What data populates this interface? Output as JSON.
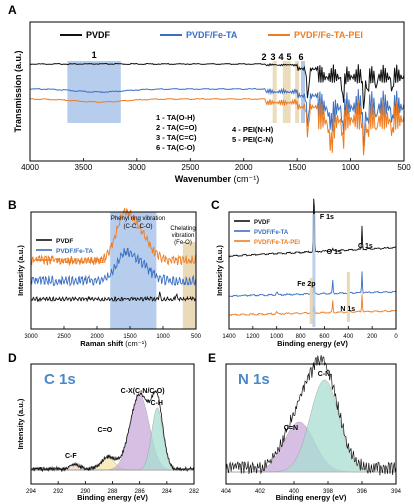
{
  "colors": {
    "pvdf": "#111111",
    "fe_ta": "#3b6fc4",
    "fe_ta_pei": "#ee7d22",
    "band_blue": "#a9c4ea",
    "band_tan": "#e9d8b4",
    "purple": "#c9a8d9",
    "teal": "#a8ded2"
  },
  "chart_data": [
    {
      "panel": "A",
      "type": "line",
      "xlabel": "Wavenumber",
      "xlabel_unit": "(cm⁻¹)",
      "ylabel": "Transmission (a.u.)",
      "xlim": [
        4000,
        500
      ],
      "xticks": [
        4000,
        3500,
        3000,
        2500,
        2000,
        1500,
        1000,
        500
      ],
      "legend": [
        "PVDF",
        "PVDF/Fe-TA",
        "PVDF/Fe-TA-PEI"
      ],
      "band_labels": [
        "1",
        "2",
        "3",
        "4",
        "5",
        "6"
      ],
      "annotations": [
        "1 - TA(O-H)",
        "2 - TA(C=O)",
        "3 - TA(C=C)",
        "6 - TA(C-O)",
        "4 - PEI(N-H)",
        "5 - PEI(C-N)"
      ],
      "bands": [
        {
          "label": "1",
          "from": 3650,
          "to": 3150
        },
        {
          "label": "2",
          "at": 1710
        },
        {
          "label": "3",
          "at": 1615
        },
        {
          "label": "4",
          "at": 1580
        },
        {
          "label": "5",
          "at": 1500
        },
        {
          "label": "6",
          "at": 1445
        }
      ]
    },
    {
      "panel": "B",
      "type": "line",
      "xlabel": "Raman shift",
      "xlabel_unit": "(cm⁻¹)",
      "ylabel": "Intensity (a.u.)",
      "xlim": [
        3000,
        500
      ],
      "xticks": [
        3000,
        2500,
        2000,
        1500,
        1000,
        500
      ],
      "legend": [
        "PVDF",
        "PVDF/Fe-TA",
        "PVDF/Fe-TA-PEI"
      ],
      "annotations": [
        "Phenyl ring vibration",
        "(C-C, C-O)",
        "Chelating",
        "vibration",
        "(Fe-O)"
      ],
      "bands": [
        {
          "from": 1800,
          "to": 1100
        },
        {
          "from": 700,
          "to": 500
        }
      ]
    },
    {
      "panel": "C",
      "type": "line",
      "xlabel": "Binding energy (eV)",
      "ylabel": "Intensity (a.u.)",
      "xlim": [
        1400,
        0
      ],
      "xticks": [
        1400,
        1200,
        1000,
        800,
        600,
        400,
        200,
        0
      ],
      "legend": [
        "PVDF",
        "PVDF/Fe-TA",
        "PVDF/Fe-TA-PEI"
      ],
      "peak_labels": [
        "F 1s",
        "O 1s",
        "C 1s",
        "Fe 2p",
        "N 1s"
      ],
      "peaks": [
        {
          "label": "F 1s",
          "at": 688
        },
        {
          "label": "O 1s",
          "at": 531
        },
        {
          "label": "C 1s",
          "at": 285
        },
        {
          "label": "Fe 2p",
          "at": 711
        },
        {
          "label": "N 1s",
          "at": 399
        }
      ]
    },
    {
      "panel": "D",
      "type": "line",
      "title": "C 1s",
      "xlabel": "Binding energy (eV)",
      "ylabel": "Intensity (a.u.)",
      "xlim": [
        294,
        282
      ],
      "xticks": [
        294,
        292,
        290,
        288,
        286,
        284,
        282
      ],
      "peak_labels": [
        "C-F",
        "C=O",
        "C-X(C-N/C-O)",
        "C-H"
      ],
      "peaks": [
        {
          "label": "C-F",
          "at": 290.8
        },
        {
          "label": "C=O",
          "at": 288.3
        },
        {
          "label": "C-X(C-N/C-O)",
          "at": 286.0
        },
        {
          "label": "C-H",
          "at": 284.7
        }
      ]
    },
    {
      "panel": "E",
      "type": "line",
      "title": "N 1s",
      "xlabel": "Binding energy (eV)",
      "xlim": [
        404,
        394
      ],
      "xticks": [
        404,
        402,
        400,
        398,
        396,
        394
      ],
      "peak_labels": [
        "C=N",
        "C-N"
      ],
      "peaks": [
        {
          "label": "C=N",
          "at": 399.7
        },
        {
          "label": "C-N",
          "at": 398.2
        }
      ]
    }
  ]
}
